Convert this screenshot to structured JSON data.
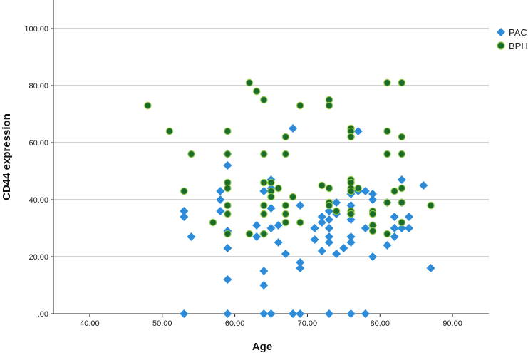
{
  "chart_data": {
    "type": "scatter",
    "xlabel": "Age",
    "ylabel": "CD44 expression",
    "xlim": [
      35,
      95
    ],
    "ylim": [
      0,
      110
    ],
    "x_ticks": [
      "40.00",
      "50.00",
      "60.00",
      "70.00",
      "80.00",
      "90.00"
    ],
    "x_tick_values": [
      40,
      50,
      60,
      70,
      80,
      90
    ],
    "y_ticks": [
      ".00",
      "20.00",
      "40.00",
      "60.00",
      "80.00",
      "100.00"
    ],
    "y_tick_values": [
      0,
      20,
      40,
      60,
      80,
      100
    ],
    "grid": "horizontal",
    "legend_position": "top-right",
    "series": [
      {
        "name": "PAC",
        "marker": "diamond",
        "color": "#2C8CDA",
        "points": [
          [
            53,
            0
          ],
          [
            53,
            36
          ],
          [
            53,
            34
          ],
          [
            54,
            27
          ],
          [
            58,
            43
          ],
          [
            58,
            40
          ],
          [
            58,
            36
          ],
          [
            59,
            56
          ],
          [
            59,
            52
          ],
          [
            59,
            29
          ],
          [
            59,
            23
          ],
          [
            59,
            12
          ],
          [
            59,
            0
          ],
          [
            63,
            31
          ],
          [
            63,
            27
          ],
          [
            64,
            43
          ],
          [
            64,
            28
          ],
          [
            64,
            15
          ],
          [
            64,
            10
          ],
          [
            64,
            0
          ],
          [
            65,
            47
          ],
          [
            65,
            44
          ],
          [
            65,
            37
          ],
          [
            65,
            30
          ],
          [
            65,
            0
          ],
          [
            66,
            31
          ],
          [
            66,
            25
          ],
          [
            67,
            21
          ],
          [
            68,
            65
          ],
          [
            68,
            0
          ],
          [
            69,
            38
          ],
          [
            69,
            18
          ],
          [
            69,
            16
          ],
          [
            69,
            0
          ],
          [
            71,
            30
          ],
          [
            71,
            26
          ],
          [
            72,
            34
          ],
          [
            72,
            32
          ],
          [
            72,
            22
          ],
          [
            73,
            36
          ],
          [
            73,
            33
          ],
          [
            73,
            30
          ],
          [
            73,
            27
          ],
          [
            73,
            25
          ],
          [
            73,
            0
          ],
          [
            74,
            39
          ],
          [
            74,
            35
          ],
          [
            74,
            21
          ],
          [
            75,
            23
          ],
          [
            76,
            42
          ],
          [
            76,
            38
          ],
          [
            76,
            35
          ],
          [
            76,
            33
          ],
          [
            76,
            27
          ],
          [
            76,
            25
          ],
          [
            76,
            0
          ],
          [
            77,
            64
          ],
          [
            77,
            43
          ],
          [
            78,
            43
          ],
          [
            78,
            30
          ],
          [
            78,
            0
          ],
          [
            79,
            42
          ],
          [
            79,
            40
          ],
          [
            79,
            31
          ],
          [
            79,
            20
          ],
          [
            81,
            39
          ],
          [
            81,
            24
          ],
          [
            82,
            34
          ],
          [
            82,
            30
          ],
          [
            82,
            27
          ],
          [
            83,
            47
          ],
          [
            83,
            39
          ],
          [
            83,
            30
          ],
          [
            84,
            34
          ],
          [
            84,
            30
          ],
          [
            86,
            45
          ],
          [
            87,
            16
          ]
        ]
      },
      {
        "name": "BPH",
        "marker": "circle",
        "color": "#1B6B2C",
        "edge_color": "#8CC63F",
        "points": [
          [
            48,
            73
          ],
          [
            51,
            64
          ],
          [
            53,
            43
          ],
          [
            54,
            56
          ],
          [
            57,
            32
          ],
          [
            59,
            64
          ],
          [
            59,
            56
          ],
          [
            59,
            46
          ],
          [
            59,
            44
          ],
          [
            59,
            38
          ],
          [
            59,
            35
          ],
          [
            59,
            28
          ],
          [
            62,
            81
          ],
          [
            62,
            28
          ],
          [
            63,
            78
          ],
          [
            64,
            75
          ],
          [
            64,
            56
          ],
          [
            64,
            46
          ],
          [
            64,
            38
          ],
          [
            64,
            35
          ],
          [
            64,
            28
          ],
          [
            65,
            46
          ],
          [
            65,
            43
          ],
          [
            65,
            41
          ],
          [
            66,
            44
          ],
          [
            67,
            62
          ],
          [
            67,
            56
          ],
          [
            67,
            38
          ],
          [
            67,
            35
          ],
          [
            67,
            32
          ],
          [
            68,
            41
          ],
          [
            69,
            73
          ],
          [
            69,
            32
          ],
          [
            72,
            45
          ],
          [
            73,
            75
          ],
          [
            73,
            73
          ],
          [
            73,
            44
          ],
          [
            73,
            39
          ],
          [
            73,
            38
          ],
          [
            74,
            36
          ],
          [
            76,
            65
          ],
          [
            76,
            64
          ],
          [
            76,
            62
          ],
          [
            76,
            47
          ],
          [
            76,
            46
          ],
          [
            76,
            44
          ],
          [
            76,
            43
          ],
          [
            76,
            36
          ],
          [
            76,
            35
          ],
          [
            77,
            44
          ],
          [
            79,
            36
          ],
          [
            79,
            35
          ],
          [
            79,
            31
          ],
          [
            79,
            29
          ],
          [
            81,
            81
          ],
          [
            81,
            64
          ],
          [
            81,
            56
          ],
          [
            81,
            39
          ],
          [
            81,
            28
          ],
          [
            82,
            43
          ],
          [
            83,
            81
          ],
          [
            83,
            62
          ],
          [
            83,
            56
          ],
          [
            83,
            44
          ],
          [
            83,
            39
          ],
          [
            83,
            32
          ],
          [
            87,
            38
          ]
        ]
      }
    ]
  }
}
